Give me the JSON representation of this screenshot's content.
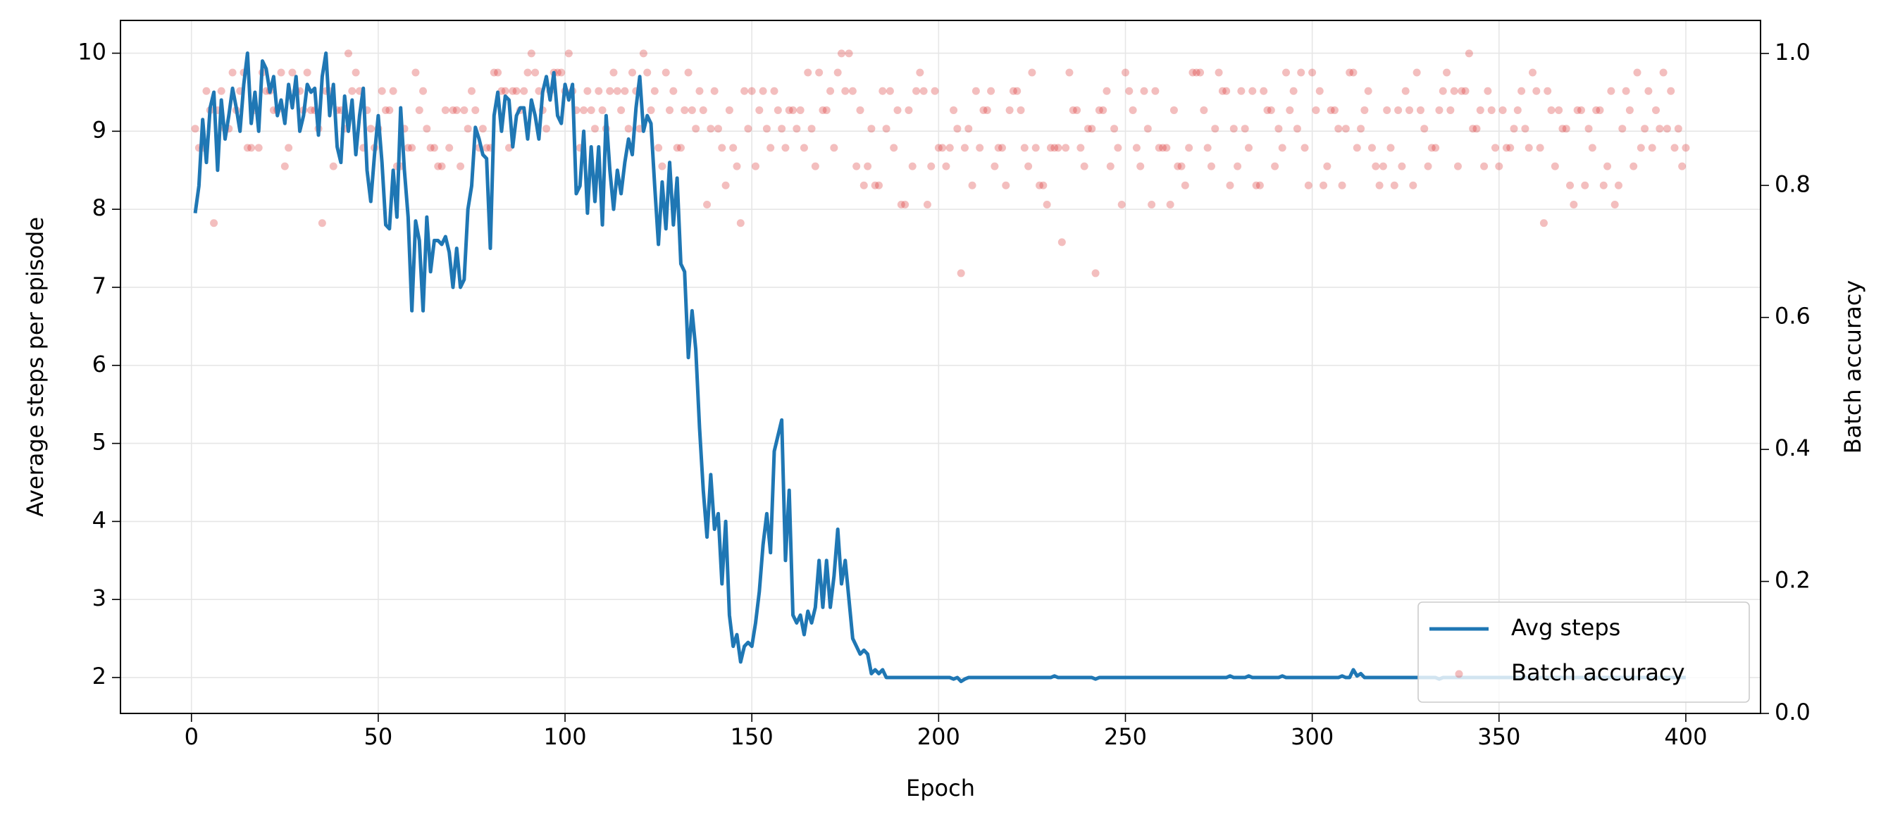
{
  "chart_data": {
    "type": "line",
    "xlabel": "Epoch",
    "ylabel": "Average steps per episode",
    "y2label": "Batch accuracy",
    "xlim": [
      -19,
      420
    ],
    "ylim": [
      1.54,
      10.42
    ],
    "y2lim": [
      0,
      1.05
    ],
    "xticks": [
      0,
      50,
      100,
      150,
      200,
      250,
      300,
      350,
      400
    ],
    "yticks": [
      2,
      3,
      4,
      5,
      6,
      7,
      8,
      9,
      10
    ],
    "y2ticks": [
      {
        "value": 0,
        "label": "0.0"
      },
      0.2,
      0.4,
      0.6,
      0.8,
      {
        "value": 1,
        "label": "1.0"
      }
    ],
    "grid": true,
    "legend": "lower right",
    "x": [
      1,
      2,
      3,
      4,
      5,
      6,
      7,
      8,
      9,
      10,
      11,
      12,
      13,
      14,
      15,
      16,
      17,
      18,
      19,
      20,
      21,
      22,
      23,
      24,
      25,
      26,
      27,
      28,
      29,
      30,
      31,
      32,
      33,
      34,
      35,
      36,
      37,
      38,
      39,
      40,
      41,
      42,
      43,
      44,
      45,
      46,
      47,
      48,
      49,
      50,
      51,
      52,
      53,
      54,
      55,
      56,
      57,
      58,
      59,
      60,
      61,
      62,
      63,
      64,
      65,
      66,
      67,
      68,
      69,
      70,
      71,
      72,
      73,
      74,
      75,
      76,
      77,
      78,
      79,
      80,
      81,
      82,
      83,
      84,
      85,
      86,
      87,
      88,
      89,
      90,
      91,
      92,
      93,
      94,
      95,
      96,
      97,
      98,
      99,
      100,
      101,
      102,
      103,
      104,
      105,
      106,
      107,
      108,
      109,
      110,
      111,
      112,
      113,
      114,
      115,
      116,
      117,
      118,
      119,
      120,
      121,
      122,
      123,
      124,
      125,
      126,
      127,
      128,
      129,
      130,
      131,
      132,
      133,
      134,
      135,
      136,
      137,
      138,
      139,
      140,
      141,
      142,
      143,
      144,
      145,
      146,
      147,
      148,
      149,
      150,
      151,
      152,
      153,
      154,
      155,
      156,
      157,
      158,
      159,
      160,
      161,
      162,
      163,
      164,
      165,
      166,
      167,
      168,
      169,
      170,
      171,
      172,
      173,
      174,
      175,
      176,
      177,
      178,
      179,
      180,
      181,
      182,
      183,
      184,
      185,
      186,
      187,
      188,
      189,
      190,
      191,
      192,
      193,
      194,
      195,
      196,
      197,
      198,
      199,
      200,
      201,
      202,
      203,
      204,
      205,
      206,
      207,
      208,
      209,
      210,
      211,
      212,
      213,
      214,
      215,
      216,
      217,
      218,
      219,
      220,
      221,
      222,
      223,
      224,
      225,
      226,
      227,
      228,
      229,
      230,
      231,
      232,
      233,
      234,
      235,
      236,
      237,
      238,
      239,
      240,
      241,
      242,
      243,
      244,
      245,
      246,
      247,
      248,
      249,
      250,
      251,
      252,
      253,
      254,
      255,
      256,
      257,
      258,
      259,
      260,
      261,
      262,
      263,
      264,
      265,
      266,
      267,
      268,
      269,
      270,
      271,
      272,
      273,
      274,
      275,
      276,
      277,
      278,
      279,
      280,
      281,
      282,
      283,
      284,
      285,
      286,
      287,
      288,
      289,
      290,
      291,
      292,
      293,
      294,
      295,
      296,
      297,
      298,
      299,
      300,
      301,
      302,
      303,
      304,
      305,
      306,
      307,
      308,
      309,
      310,
      311,
      312,
      313,
      314,
      315,
      316,
      317,
      318,
      319,
      320,
      321,
      322,
      323,
      324,
      325,
      326,
      327,
      328,
      329,
      330,
      331,
      332,
      333,
      334,
      335,
      336,
      337,
      338,
      339,
      340,
      341,
      342,
      343,
      344,
      345,
      346,
      347,
      348,
      349,
      350,
      351,
      352,
      353,
      354,
      355,
      356,
      357,
      358,
      359,
      360,
      361,
      362,
      363,
      364,
      365,
      366,
      367,
      368,
      369,
      370,
      371,
      372,
      373,
      374,
      375,
      376,
      377,
      378,
      379,
      380,
      381,
      382,
      383,
      384,
      385,
      386,
      387,
      388,
      389,
      390,
      391,
      392,
      393,
      394,
      395,
      396,
      397,
      398,
      399,
      400
    ],
    "series": [
      {
        "name": "Avg steps",
        "color": "#1f77b4",
        "type": "line",
        "values": [
          7.95,
          8.3,
          9.15,
          8.6,
          9.3,
          9.5,
          8.5,
          9.4,
          8.9,
          9.2,
          9.55,
          9.3,
          9.0,
          9.6,
          10.0,
          9.1,
          9.5,
          9.0,
          9.9,
          9.8,
          9.5,
          9.7,
          9.2,
          9.4,
          9.1,
          9.6,
          9.3,
          9.7,
          9.0,
          9.2,
          9.6,
          9.5,
          9.55,
          8.95,
          9.7,
          10.0,
          9.2,
          9.6,
          8.8,
          8.6,
          9.45,
          9.0,
          9.4,
          8.7,
          9.2,
          9.55,
          8.5,
          8.1,
          8.7,
          9.2,
          8.6,
          7.8,
          7.75,
          8.5,
          7.9,
          9.3,
          8.5,
          7.9,
          6.7,
          7.85,
          7.6,
          6.7,
          7.9,
          7.2,
          7.6,
          7.6,
          7.55,
          7.65,
          7.45,
          7.0,
          7.5,
          7.0,
          7.1,
          8.0,
          8.3,
          9.05,
          8.9,
          8.7,
          8.65,
          7.5,
          9.2,
          9.5,
          9.0,
          9.45,
          9.4,
          8.8,
          9.2,
          9.3,
          9.3,
          8.9,
          9.4,
          9.2,
          8.9,
          9.5,
          9.7,
          9.4,
          9.75,
          9.2,
          9.1,
          9.6,
          9.4,
          9.6,
          8.2,
          8.3,
          9.0,
          7.95,
          8.8,
          8.1,
          8.8,
          7.8,
          9.2,
          8.5,
          8.0,
          8.5,
          8.2,
          8.6,
          8.9,
          8.7,
          9.3,
          9.7,
          9.0,
          9.2,
          9.1,
          8.3,
          7.55,
          8.35,
          7.75,
          8.6,
          7.8,
          8.4,
          7.3,
          7.2,
          6.1,
          6.7,
          6.2,
          5.2,
          4.4,
          3.8,
          4.6,
          3.9,
          4.1,
          3.2,
          4.0,
          2.8,
          2.4,
          2.55,
          2.2,
          2.4,
          2.45,
          2.4,
          2.7,
          3.1,
          3.7,
          4.1,
          3.6,
          4.9,
          5.1,
          5.3,
          3.5,
          4.4,
          2.8,
          2.7,
          2.8,
          2.55,
          2.85,
          2.7,
          2.9,
          3.5,
          2.9,
          3.5,
          2.9,
          3.3,
          3.9,
          3.2,
          3.5,
          3.0,
          2.5,
          2.4,
          2.3,
          2.35,
          2.3,
          2.05,
          2.1,
          2.05,
          2.1,
          2,
          2,
          2,
          2,
          2,
          2,
          2,
          2,
          2,
          2,
          2,
          2,
          2,
          2,
          2,
          2,
          2,
          2,
          1.98,
          2,
          1.95,
          1.98,
          2,
          2,
          2,
          2,
          2,
          2,
          2,
          2,
          2,
          2,
          2,
          2,
          2,
          2,
          2,
          2,
          2,
          2,
          2,
          2,
          2,
          2,
          2,
          2.02,
          2,
          2,
          2,
          2,
          2,
          2,
          2,
          2,
          2,
          2,
          1.98,
          2,
          2,
          2,
          2,
          2,
          2,
          2,
          2,
          2,
          2,
          2,
          2,
          2,
          2,
          2,
          2,
          2,
          2,
          2,
          2,
          2,
          2,
          2,
          2,
          2,
          2,
          2,
          2,
          2,
          2,
          2,
          2,
          2,
          2,
          2,
          2.02,
          2,
          2,
          2,
          2,
          2.02,
          2,
          2,
          2,
          2,
          2,
          2,
          2,
          2,
          2.02,
          2,
          2,
          2,
          2,
          2,
          2,
          2,
          2,
          2,
          2,
          2,
          2,
          2,
          2,
          2,
          2.02,
          2,
          2,
          2.1,
          2.02,
          2.05,
          2,
          2,
          2,
          2,
          2,
          2,
          2,
          2,
          2,
          2,
          2,
          2,
          2,
          2,
          2,
          2,
          2,
          2,
          2,
          2,
          1.98,
          2,
          2,
          2,
          2,
          2,
          2,
          2,
          2,
          2,
          2,
          2,
          2,
          2,
          2,
          2,
          2,
          2,
          2,
          2,
          2,
          2,
          2,
          2,
          2,
          2,
          2,
          2,
          2,
          2,
          2,
          2,
          2,
          2,
          2,
          2,
          2,
          2,
          2,
          2,
          2,
          2,
          2,
          2,
          2,
          2,
          2,
          2,
          2,
          2,
          2,
          2,
          2,
          2,
          2,
          2,
          2,
          2,
          2,
          2,
          2,
          2,
          2,
          2,
          2,
          2,
          2
        ]
      },
      {
        "name": "Batch accuracy",
        "color": "#d62728",
        "type": "scatter",
        "axis": "y2",
        "values": [
          0.886,
          0.857,
          0.857,
          0.943,
          0.914,
          0.743,
          0.914,
          0.943,
          0.886,
          0.886,
          0.971,
          0.914,
          0.943,
          0.971,
          0.857,
          0.857,
          0.914,
          0.857,
          0.971,
          0.943,
          0.943,
          0.914,
          0.914,
          0.971,
          0.829,
          0.857,
          0.971,
          0.943,
          0.943,
          0.914,
          0.971,
          0.914,
          0.914,
          0.886,
          0.743,
          0.943,
          0.943,
          0.829,
          0.914,
          0.914,
          0.886,
          1,
          0.943,
          0.971,
          0.943,
          0.857,
          0.914,
          0.886,
          0.857,
          0.886,
          0.943,
          0.914,
          0.914,
          0.943,
          0.829,
          0.829,
          0.886,
          0.857,
          0.857,
          0.971,
          0.914,
          0.943,
          0.886,
          0.857,
          0.857,
          0.829,
          0.829,
          0.914,
          0.857,
          0.914,
          0.914,
          0.829,
          0.914,
          0.886,
          0.943,
          0.914,
          0.857,
          0.886,
          0.857,
          0.857,
          0.971,
          0.971,
          0.943,
          0.943,
          0.857,
          0.943,
          0.943,
          0.914,
          0.943,
          0.971,
          1,
          0.971,
          0.943,
          0.914,
          0.886,
          0.943,
          0.971,
          0.971,
          0.971,
          0.943,
          1,
          0.943,
          0.914,
          0.857,
          0.914,
          0.943,
          0.914,
          0.886,
          0.943,
          0.914,
          0.886,
          0.943,
          0.971,
          0.943,
          0.914,
          0.943,
          0.886,
          0.971,
          0.943,
          0.886,
          1,
          0.971,
          0.914,
          0.943,
          0.857,
          0.829,
          0.971,
          0.914,
          0.943,
          0.857,
          0.857,
          0.914,
          0.971,
          0.914,
          0.886,
          0.943,
          0.914,
          0.771,
          0.886,
          0.943,
          0.886,
          0.857,
          0.8,
          0.914,
          0.857,
          0.829,
          0.743,
          0.943,
          0.886,
          0.943,
          0.829,
          0.914,
          0.943,
          0.886,
          0.857,
          0.943,
          0.914,
          0.886,
          0.857,
          0.914,
          0.914,
          0.886,
          0.914,
          0.857,
          0.971,
          0.886,
          0.829,
          0.971,
          0.914,
          0.914,
          0.943,
          0.857,
          0.971,
          1,
          0.943,
          1,
          0.943,
          0.829,
          0.914,
          0.8,
          0.829,
          0.886,
          0.8,
          0.8,
          0.943,
          0.886,
          0.943,
          0.857,
          0.914,
          0.771,
          0.771,
          0.914,
          0.829,
          0.943,
          0.971,
          0.943,
          0.771,
          0.829,
          0.943,
          0.857,
          0.857,
          0.829,
          0.857,
          0.914,
          0.886,
          0.667,
          0.857,
          0.886,
          0.8,
          0.943,
          0.857,
          0.914,
          0.914,
          0.943,
          0.829,
          0.857,
          0.857,
          0.8,
          0.914,
          0.943,
          0.943,
          0.914,
          0.857,
          0.829,
          0.971,
          0.857,
          0.8,
          0.8,
          0.771,
          0.857,
          0.857,
          0.857,
          0.714,
          0.857,
          0.971,
          0.914,
          0.914,
          0.857,
          0.829,
          0.886,
          0.886,
          0.667,
          0.914,
          0.914,
          0.943,
          0.829,
          0.886,
          0.857,
          0.771,
          0.971,
          0.943,
          0.914,
          0.857,
          0.829,
          0.943,
          0.886,
          0.771,
          0.943,
          0.857,
          0.857,
          0.857,
          0.771,
          0.914,
          0.829,
          0.829,
          0.8,
          0.857,
          0.971,
          0.971,
          0.971,
          0.914,
          0.857,
          0.829,
          0.886,
          0.971,
          0.943,
          0.943,
          0.8,
          0.886,
          0.829,
          0.943,
          0.886,
          0.857,
          0.943,
          0.8,
          0.8,
          0.943,
          0.914,
          0.914,
          0.829,
          0.886,
          0.857,
          0.971,
          0.914,
          0.943,
          0.886,
          0.971,
          0.857,
          0.8,
          0.971,
          0.914,
          0.943,
          0.8,
          0.829,
          0.914,
          0.914,
          0.886,
          0.8,
          0.886,
          0.971,
          0.971,
          0.857,
          0.886,
          0.914,
          0.943,
          0.857,
          0.829,
          0.8,
          0.829,
          0.914,
          0.857,
          0.8,
          0.914,
          0.829,
          0.943,
          0.914,
          0.8,
          0.971,
          0.914,
          0.886,
          0.829,
          0.857,
          0.857,
          0.914,
          0.943,
          0.971,
          0.914,
          0.943,
          0.829,
          0.943,
          0.943,
          1,
          0.886,
          0.886,
          0.914,
          0.829,
          0.943,
          0.914,
          0.857,
          0.829,
          0.914,
          0.857,
          0.857,
          0.886,
          0.914,
          0.943,
          0.886,
          0.857,
          0.971,
          0.943,
          0.857,
          0.743,
          0.943,
          0.914,
          0.829,
          0.914,
          0.886,
          0.886,
          0.8,
          0.771,
          0.914,
          0.914,
          0.8,
          0.886,
          0.857,
          0.914,
          0.914,
          0.8,
          0.829,
          0.943,
          0.771,
          0.8,
          0.886,
          0.943,
          0.914,
          0.829,
          0.971,
          0.857,
          0.886,
          0.943,
          0.857,
          0.914,
          0.886,
          0.971,
          0.886,
          0.943,
          0.857,
          0.886,
          0.829,
          0.857
        ]
      }
    ]
  }
}
